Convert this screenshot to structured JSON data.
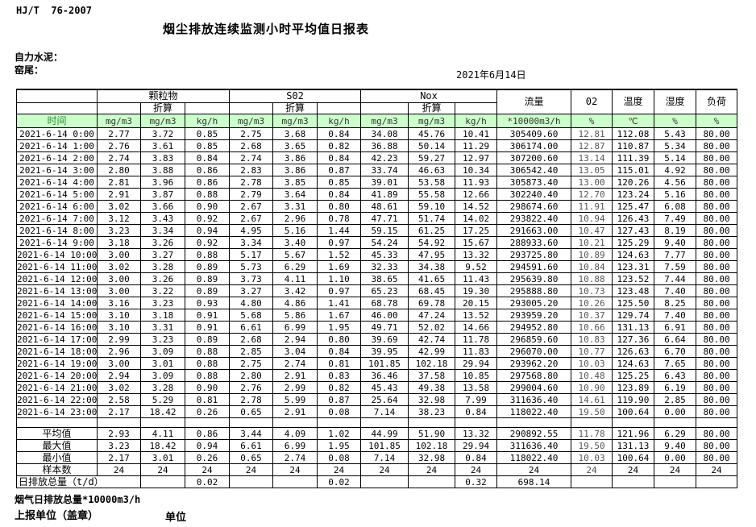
{
  "header": {
    "standard": "HJ/T  76-2007",
    "title": "烟尘排放连续监测小时平均值日报表",
    "company": "自力水泥：",
    "site": "窑尾：",
    "date": "2021年6月14日"
  },
  "table": {
    "columns": {
      "time": "时间",
      "groups": [
        {
          "name": "颗粒物"
        },
        {
          "name": "S02"
        },
        {
          "name": "Nox"
        }
      ],
      "converted": "折算",
      "unit_mg": "mg/m3",
      "unit_kg": "kg/h",
      "flow": {
        "name": "流量",
        "unit": "*10000m3/h"
      },
      "o2": {
        "name": "02",
        "unit": "%"
      },
      "temperature": {
        "name": "温度",
        "unit": "℃"
      },
      "humidity": {
        "name": "湿度",
        "unit": "%"
      },
      "load": {
        "name": "负荷",
        "unit": "%"
      }
    },
    "rows": [
      [
        "2021-6-14 0:00",
        "2.77",
        "3.72",
        "0.85",
        "2.75",
        "3.68",
        "0.84",
        "34.08",
        "45.76",
        "10.41",
        "305409.60",
        "12.81",
        "112.08",
        "5.43",
        "80.00"
      ],
      [
        "2021-6-14 1:00",
        "2.76",
        "3.61",
        "0.85",
        "2.68",
        "3.65",
        "0.82",
        "36.88",
        "50.14",
        "11.29",
        "306174.00",
        "12.87",
        "110.87",
        "5.34",
        "80.00"
      ],
      [
        "2021-6-14 2:00",
        "2.74",
        "3.83",
        "0.84",
        "2.74",
        "3.86",
        "0.84",
        "42.23",
        "59.27",
        "12.97",
        "307200.60",
        "13.14",
        "111.39",
        "5.14",
        "80.00"
      ],
      [
        "2021-6-14 3:00",
        "2.80",
        "3.88",
        "0.86",
        "2.83",
        "3.86",
        "0.87",
        "33.74",
        "46.63",
        "10.34",
        "306542.40",
        "13.05",
        "115.01",
        "4.92",
        "80.00"
      ],
      [
        "2021-6-14 4:00",
        "2.81",
        "3.96",
        "0.86",
        "2.78",
        "3.85",
        "0.85",
        "39.01",
        "53.58",
        "11.93",
        "305873.40",
        "13.00",
        "120.26",
        "4.56",
        "80.00"
      ],
      [
        "2021-6-14 5:00",
        "2.91",
        "3.87",
        "0.88",
        "2.79",
        "3.64",
        "0.84",
        "41.89",
        "55.58",
        "12.66",
        "302240.40",
        "12.70",
        "123.24",
        "5.16",
        "80.00"
      ],
      [
        "2021-6-14 6:00",
        "3.02",
        "3.66",
        "0.90",
        "2.67",
        "3.31",
        "0.80",
        "48.61",
        "59.10",
        "14.52",
        "298674.60",
        "11.91",
        "125.47",
        "6.08",
        "80.00"
      ],
      [
        "2021-6-14 7:00",
        "3.12",
        "3.43",
        "0.92",
        "2.67",
        "2.96",
        "0.78",
        "47.71",
        "51.74",
        "14.02",
        "293822.40",
        "10.94",
        "126.43",
        "7.49",
        "80.00"
      ],
      [
        "2021-6-14 8:00",
        "3.23",
        "3.34",
        "0.94",
        "4.95",
        "5.16",
        "1.44",
        "59.15",
        "61.25",
        "17.25",
        "291663.00",
        "10.47",
        "127.43",
        "8.19",
        "80.00"
      ],
      [
        "2021-6-14 9:00",
        "3.18",
        "3.26",
        "0.92",
        "3.34",
        "3.40",
        "0.97",
        "54.24",
        "54.92",
        "15.67",
        "288933.60",
        "10.21",
        "125.29",
        "9.40",
        "80.00"
      ],
      [
        "2021-6-14 10:00",
        "3.00",
        "3.27",
        "0.88",
        "5.17",
        "5.67",
        "1.52",
        "45.33",
        "47.95",
        "13.32",
        "293725.80",
        "10.89",
        "124.63",
        "7.77",
        "80.00"
      ],
      [
        "2021-6-14 11:00",
        "3.02",
        "3.28",
        "0.89",
        "5.73",
        "6.29",
        "1.69",
        "32.33",
        "34.38",
        "9.52",
        "294591.60",
        "10.84",
        "123.31",
        "7.59",
        "80.00"
      ],
      [
        "2021-6-14 12:00",
        "3.00",
        "3.26",
        "0.89",
        "3.73",
        "4.11",
        "1.10",
        "38.65",
        "41.65",
        "11.43",
        "295639.80",
        "10.88",
        "123.52",
        "7.44",
        "80.00"
      ],
      [
        "2021-6-14 13:00",
        "3.00",
        "3.22",
        "0.89",
        "3.27",
        "3.42",
        "0.97",
        "65.23",
        "68.45",
        "19.30",
        "295888.80",
        "10.73",
        "123.48",
        "7.40",
        "80.00"
      ],
      [
        "2021-6-14 14:00",
        "3.16",
        "3.23",
        "0.93",
        "4.80",
        "4.86",
        "1.41",
        "68.78",
        "69.78",
        "20.15",
        "293005.20",
        "10.26",
        "125.50",
        "8.25",
        "80.00"
      ],
      [
        "2021-6-14 15:00",
        "3.10",
        "3.18",
        "0.91",
        "5.68",
        "5.86",
        "1.67",
        "46.00",
        "47.24",
        "13.52",
        "293959.20",
        "10.37",
        "129.74",
        "7.40",
        "80.00"
      ],
      [
        "2021-6-14 16:00",
        "3.10",
        "3.31",
        "0.91",
        "6.61",
        "6.99",
        "1.95",
        "49.71",
        "52.02",
        "14.66",
        "294952.80",
        "10.66",
        "131.13",
        "6.91",
        "80.00"
      ],
      [
        "2021-6-14 17:00",
        "2.99",
        "3.23",
        "0.89",
        "2.68",
        "2.94",
        "0.80",
        "39.69",
        "42.74",
        "11.78",
        "296859.60",
        "10.83",
        "127.36",
        "6.64",
        "80.00"
      ],
      [
        "2021-6-14 18:00",
        "2.96",
        "3.09",
        "0.88",
        "2.85",
        "3.04",
        "0.84",
        "39.95",
        "42.99",
        "11.83",
        "296070.00",
        "10.77",
        "126.63",
        "6.70",
        "80.00"
      ],
      [
        "2021-6-14 19:00",
        "3.00",
        "3.01",
        "0.88",
        "2.75",
        "2.74",
        "0.81",
        "101.85",
        "102.18",
        "29.94",
        "293962.20",
        "10.03",
        "124.63",
        "7.65",
        "80.00"
      ],
      [
        "2021-6-14 20:00",
        "2.94",
        "3.09",
        "0.88",
        "2.80",
        "2.91",
        "0.83",
        "36.46",
        "37.58",
        "10.85",
        "297568.80",
        "10.48",
        "125.25",
        "6.43",
        "80.00"
      ],
      [
        "2021-6-14 21:00",
        "3.02",
        "3.28",
        "0.90",
        "2.76",
        "2.99",
        "0.82",
        "45.43",
        "49.38",
        "13.58",
        "299004.60",
        "10.90",
        "123.89",
        "6.19",
        "80.00"
      ],
      [
        "2021-6-14 22:00",
        "2.58",
        "5.29",
        "0.81",
        "2.78",
        "5.99",
        "0.87",
        "25.64",
        "32.98",
        "7.99",
        "311636.40",
        "14.61",
        "119.90",
        "2.85",
        "80.00"
      ],
      [
        "2021-6-14 23:00",
        "2.17",
        "18.42",
        "0.26",
        "0.65",
        "2.91",
        "0.08",
        "7.14",
        "38.23",
        "0.84",
        "118022.40",
        "19.50",
        "100.64",
        "0.00",
        "80.00"
      ]
    ],
    "summary": [
      {
        "label": "平均值",
        "values": [
          "2.93",
          "4.11",
          "0.86",
          "3.44",
          "4.09",
          "1.02",
          "44.99",
          "51.90",
          "13.32",
          "290892.55",
          "11.78",
          "121.96",
          "6.29",
          "80.00"
        ]
      },
      {
        "label": "最大值",
        "values": [
          "3.23",
          "18.42",
          "0.94",
          "6.61",
          "6.99",
          "1.95",
          "101.85",
          "102.18",
          "29.94",
          "311636.40",
          "19.50",
          "131.13",
          "9.40",
          "80.00"
        ]
      },
      {
        "label": "最小值",
        "values": [
          "2.17",
          "3.01",
          "0.26",
          "0.65",
          "2.74",
          "0.08",
          "7.14",
          "32.98",
          "0.84",
          "118022.40",
          "10.03",
          "100.64",
          "0.00",
          "80.00"
        ]
      },
      {
        "label": "样本数",
        "values": [
          "24",
          "24",
          "24",
          "24",
          "24",
          "24",
          "24",
          "24",
          "24",
          "24",
          "24",
          "24",
          "24",
          "24"
        ]
      }
    ],
    "daily_total": {
      "label": "日排放总量（t/d）",
      "values": [
        "",
        "0.02",
        "",
        "",
        "0.02",
        "",
        "",
        "0.32",
        "698.14",
        "",
        "",
        "",
        ""
      ]
    }
  },
  "footer": {
    "flow_note": "烟气日排放总量*10000m3/h",
    "report_unit": "上报单位（盖章）",
    "unit": "单位"
  }
}
